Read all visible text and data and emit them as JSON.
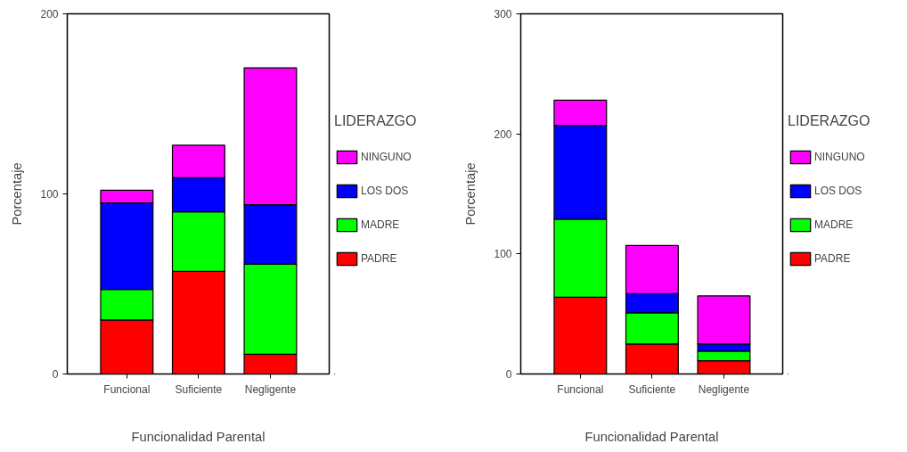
{
  "chart_data": [
    {
      "type": "bar",
      "stacked": true,
      "xlabel": "Funcionalidad Parental",
      "ylabel": "Porcentaje",
      "legend_title": "LIDERAZGO",
      "legend": "right",
      "grid": false,
      "categories": [
        "Funcional",
        "Suficiente",
        "Negligente"
      ],
      "ylim": [
        0,
        200
      ],
      "yticks": [
        0,
        100,
        200
      ],
      "series": [
        {
          "name": "PADRE",
          "color": "#ff0000",
          "values": [
            30,
            57,
            11
          ]
        },
        {
          "name": "MADRE",
          "color": "#00ff00",
          "values": [
            17,
            33,
            50
          ]
        },
        {
          "name": "LOS DOS",
          "color": "#0000ff",
          "values": [
            48,
            19,
            33
          ]
        },
        {
          "name": "NINGUNO",
          "color": "#ff00ff",
          "values": [
            7,
            18,
            76
          ]
        }
      ]
    },
    {
      "type": "bar",
      "stacked": true,
      "xlabel": "Funcionalidad Parental",
      "ylabel": "Porcentaje",
      "legend_title": "LIDERAZGO",
      "legend": "right",
      "grid": false,
      "categories": [
        "Funcional",
        "Suficiente",
        "Negligente"
      ],
      "ylim": [
        0,
        300
      ],
      "yticks": [
        0,
        100,
        200,
        300
      ],
      "series": [
        {
          "name": "PADRE",
          "color": "#ff0000",
          "values": [
            64,
            25,
            11
          ]
        },
        {
          "name": "MADRE",
          "color": "#00ff00",
          "values": [
            65,
            26,
            8
          ]
        },
        {
          "name": "LOS DOS",
          "color": "#0000ff",
          "values": [
            78,
            16,
            6
          ]
        },
        {
          "name": "NINGUNO",
          "color": "#ff00ff",
          "values": [
            21,
            40,
            40
          ]
        }
      ]
    }
  ]
}
